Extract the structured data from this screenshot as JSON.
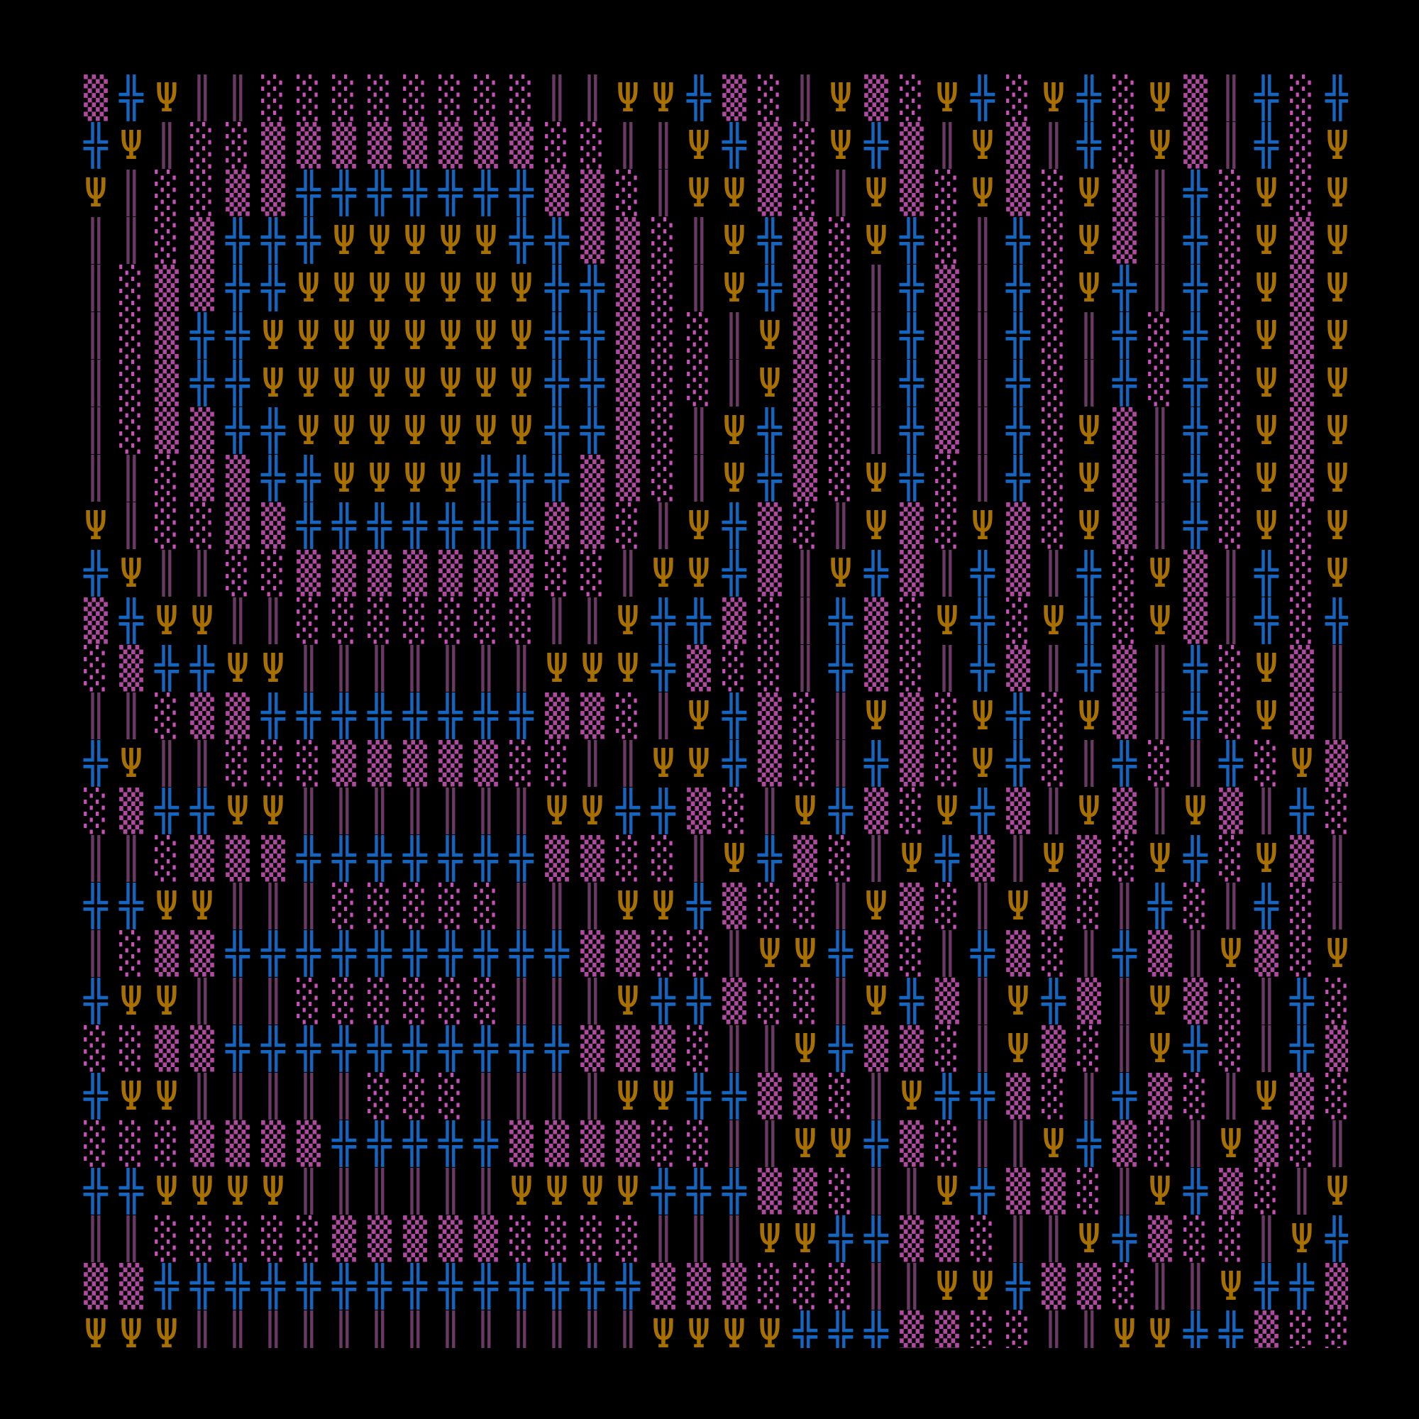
{
  "glyphs": {
    "B": {
      "char": "╬",
      "name": "double-cross-glyph",
      "color": "#1466c0"
    },
    "Y": {
      "char": "Ψ",
      "name": "trident-glyph",
      "color": "#a87000"
    },
    "V": {
      "char": "║",
      "name": "double-bar-glyph",
      "color": "#6a3a64"
    },
    "D": {
      "char": "▒",
      "name": "dense-shade-glyph",
      "color": "#b04aa0"
    },
    "S": {
      "char": "░",
      "name": "light-shade-glyph",
      "color": "#c850b8"
    }
  },
  "background": "#000000",
  "rows": [
    "DBYVVSSSSSSSSVVYYBDSVYDSYBSYBSYDVBSBS",
    "BYVSSDDDDDDDDSSVVYBDSYBDVYDVBSYDVBSYD",
    "YVSSDDBBBBBBBDDSVYYDSVYDSYDSYDVBSYSYD",
    "VVSDBBBYYYYYBBDDSVYBDSYBSVBSYDVBSYDYD",
    "VSDDBBYYYYYYYBBDSVYBDSVBDVBSYBVBSYDYD",
    "VSDBBYYYYYYYYBBDSSVYDSVBDVBSVBSBSYDYD",
    "VSDBBYYYYYYYYBBDSSVYDSVBDVBSVBSBSYDYD",
    "VSDDBBYYYYYYYBBDSVYBDSVBDVBSYDVBSYDYD",
    "VVSDDBBYYYYBBBDDSVYBDSYBSVBSYDVBSYDYD",
    "YVSSDDBBBBBBBDDSVYBDSVYDSYDSYDVBSYSYD",
    "BYVVSSDDDDDDDSSVYYBDVYBDVBDVBSYDVBSYS",
    "DBYYVVSSSSSSSVVYBBDSVBDSYBSYBSYDVBSBS",
    "SDBBYYVVVVVVVYYYBDSSVBDSVBDVBDVBSYDVB",
    "VVSDDBBBBBBBBDDSVYBDSVYDSYBSYDVBSYDVD",
    "BYVVSSSDDDDDSSVVYYBDSVBDSYBSVBSVBSYDV",
    "SDBBYYVVVVVVVYYBBDSVYBDSYBDVYDVYDVBSY",
    "VVSDDDBBBBBBBDDSSVYBDSVYBDVYDSYBSYDVY",
    "BBYYVVVSSSSSVVVYYBDSSVYDSVYDSVBSVBSVB",
    "VSDDBBBBBBBBBBDDSSVYYBDSVBDSVBDVYDSYD",
    "BYYVVVSSSSSSVVVYBBDSSVYBDVYBDVYDSVBSD",
    "SSDDBBBBBBBBBBDDDSVVYBDDSVYDSVYBSVBDS",
    "BYYVVVVVSSSVVVVYYBBDDSVYBBDSVBDSVYDSV",
    "SSSDDDDBBBBBDDDDSSVVYYBDSVVYBDSVYDSVY",
    "BBYYYYVVVVVVYYYYBBBDDSVVYBDDSVYBDSVYB",
    "VVSSSSSDDDDDSSSSVVVYYBBDDSVVYBDSSVYBD",
    "DDBBBBBBBBBBBBBBDDDSSSVVYYBDDSVVYBBDS",
    "YYYVVVVVVVVVVVVVYYYYBBBDDSSVVYYBBDSSV"
  ]
}
